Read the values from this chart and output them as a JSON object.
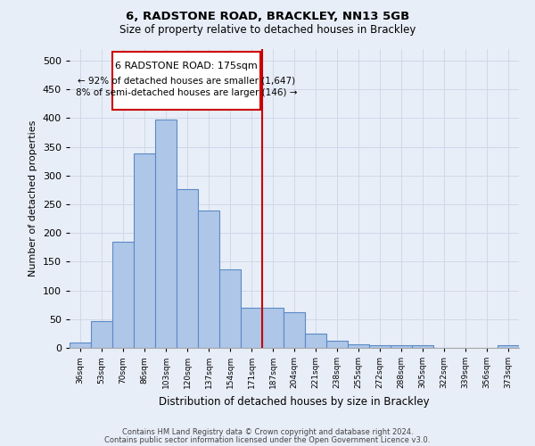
{
  "title1": "6, RADSTONE ROAD, BRACKLEY, NN13 5GB",
  "title2": "Size of property relative to detached houses in Brackley",
  "xlabel": "Distribution of detached houses by size in Brackley",
  "ylabel": "Number of detached properties",
  "categories": [
    "36sqm",
    "53sqm",
    "70sqm",
    "86sqm",
    "103sqm",
    "120sqm",
    "137sqm",
    "154sqm",
    "171sqm",
    "187sqm",
    "204sqm",
    "221sqm",
    "238sqm",
    "255sqm",
    "272sqm",
    "288sqm",
    "305sqm",
    "322sqm",
    "339sqm",
    "356sqm",
    "373sqm"
  ],
  "values": [
    9,
    46,
    185,
    338,
    398,
    276,
    239,
    136,
    70,
    70,
    62,
    25,
    12,
    6,
    5,
    4,
    4,
    0,
    0,
    0,
    5
  ],
  "bar_color": "#aec6e8",
  "bar_edge_color": "#5b8ac4",
  "grid_color": "#d0d8e8",
  "annotation_box_color": "#cc0000",
  "annotation_title": "6 RADSTONE ROAD: 175sqm",
  "annotation_line1": "← 92% of detached houses are smaller (1,647)",
  "annotation_line2": "8% of semi-detached houses are larger (146) →",
  "vline_x": 8.5,
  "vline_color": "#cc0000",
  "ylim": [
    0,
    520
  ],
  "yticks": [
    0,
    50,
    100,
    150,
    200,
    250,
    300,
    350,
    400,
    450,
    500
  ],
  "footer1": "Contains HM Land Registry data © Crown copyright and database right 2024.",
  "footer2": "Contains public sector information licensed under the Open Government Licence v3.0.",
  "bg_color": "#e8eef8"
}
